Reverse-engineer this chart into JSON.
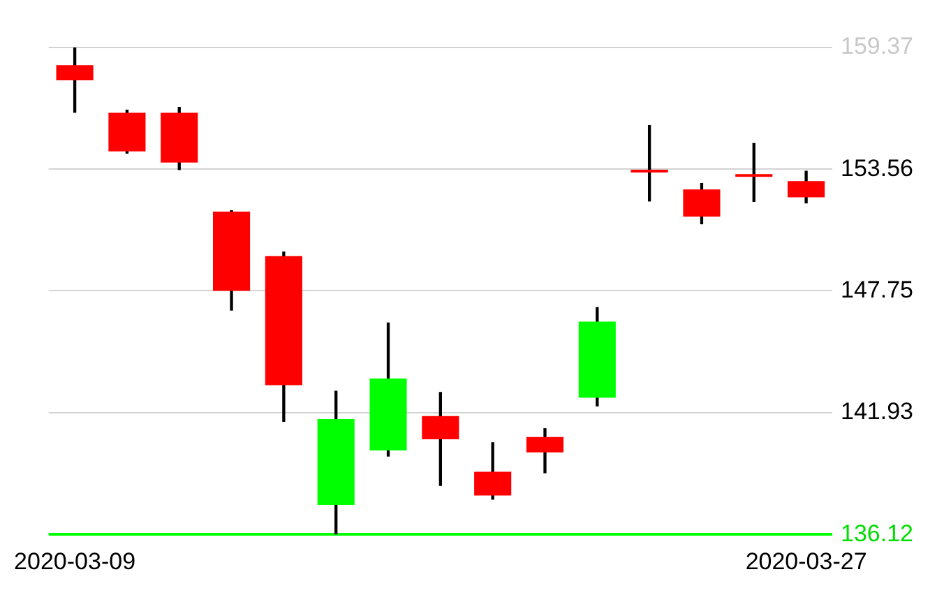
{
  "chart_data": {
    "type": "candlestick",
    "categories": [
      "2020-03-09",
      null,
      null,
      null,
      null,
      null,
      null,
      null,
      null,
      null,
      null,
      null,
      null,
      null,
      "2020-03-27"
    ],
    "ohlc": [
      [
        158.53,
        159.37,
        156.27,
        157.8
      ],
      [
        156.25,
        156.38,
        154.32,
        154.41
      ],
      [
        156.25,
        156.51,
        153.54,
        153.88
      ],
      [
        151.53,
        151.58,
        146.83,
        147.75
      ],
      [
        149.41,
        149.6,
        141.52,
        143.25
      ],
      [
        137.53,
        142.96,
        136.12,
        141.63
      ],
      [
        140.13,
        146.22,
        139.86,
        143.56
      ],
      [
        141.77,
        142.9,
        138.46,
        140.66
      ],
      [
        139.11,
        140.5,
        137.8,
        137.98
      ],
      [
        140.77,
        141.17,
        139.06,
        140.04
      ],
      [
        142.65,
        146.95,
        142.25,
        146.28
      ],
      [
        153.45,
        155.65,
        152.04,
        153.4
      ],
      [
        152.59,
        152.88,
        150.95,
        151.29
      ],
      [
        153.29,
        154.79,
        152.02,
        153.19
      ],
      [
        152.99,
        153.46,
        151.95,
        152.22
      ]
    ],
    "colors": [
      "#ff0000",
      "#ff0000",
      "#ff0000",
      "#ff0000",
      "#ff0000",
      "#00ff00",
      "#00ff00",
      "#ff0000",
      "#ff0000",
      "#ff0000",
      "#00ff00",
      "#ff0000",
      "#ff0000",
      "#ff0000",
      "#ff0000"
    ],
    "ylim": [
      136.12,
      159.37
    ],
    "yticks": [
      136.12,
      141.93,
      147.75,
      153.56,
      159.37
    ],
    "grid": "y",
    "legend": false
  }
}
